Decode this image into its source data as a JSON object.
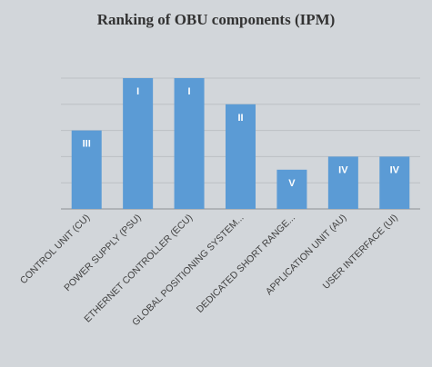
{
  "chart_data": {
    "type": "bar",
    "title": "Ranking of OBU components (IPM)",
    "categories": [
      "CONTROL UNIT (CU)",
      "POWER SUPPLY (PSU)",
      "ETHERNET CONTROLLER (ECU)",
      "GLOBAL POSITIONING SYSTEM...",
      "DEDICATED SHORT RANGE...",
      "APPLICATION UNIT (AU)",
      "USER INTERFACE (UI)"
    ],
    "values": [
      3,
      5,
      5,
      4,
      1.5,
      2,
      2
    ],
    "data_labels": [
      "III",
      "I",
      "I",
      "II",
      "V",
      "IV",
      "IV"
    ],
    "ylim": [
      0,
      5.0
    ],
    "grid": true,
    "legend": "none",
    "colors": {
      "bar": "#5b9bd5",
      "label": "#ffffff",
      "grid": "#bcc0c4",
      "axis": "#8c9094",
      "text": "#404040",
      "background": "#d2d6da"
    }
  }
}
